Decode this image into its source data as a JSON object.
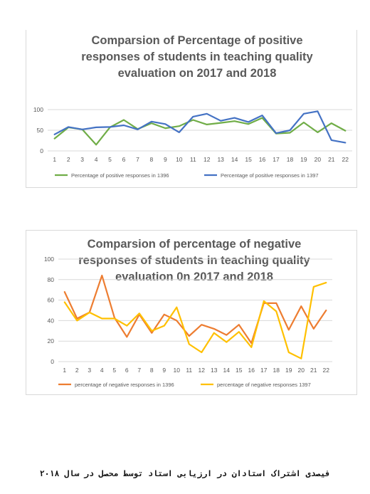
{
  "chart_data": [
    {
      "type": "line",
      "title_lines": [
        "Comparsion of Percentage of positive",
        "responses  of students in teaching quality",
        "evaluation on 2017 and 2018"
      ],
      "x": [
        "1",
        "2",
        "3",
        "4",
        "5",
        "6",
        "7",
        "8",
        "9",
        "10",
        "11",
        "12",
        "13",
        "14",
        "15",
        "16",
        "17",
        "18",
        "19",
        "20",
        "21",
        "22"
      ],
      "yticks": [
        "0",
        "50",
        "100"
      ],
      "ylim": [
        0,
        100
      ],
      "grid": true,
      "legend": "bottom",
      "series": [
        {
          "name": "Percentage of positive responses in 1396",
          "color": "#70ad47",
          "values": [
            30,
            57,
            52,
            15,
            57,
            75,
            53,
            67,
            55,
            60,
            75,
            64,
            68,
            72,
            65,
            80,
            42,
            44,
            69,
            45,
            67,
            49
          ]
        },
        {
          "name": "Percentage of positive responses in 1397",
          "color": "#4472c4",
          "values": [
            40,
            58,
            52,
            57,
            58,
            62,
            52,
            71,
            65,
            45,
            83,
            90,
            73,
            80,
            70,
            86,
            43,
            50,
            90,
            96,
            26,
            20
          ]
        }
      ]
    },
    {
      "type": "line",
      "title_lines": [
        "Comparsion of percentage of negative",
        "responses of students in teaching quality",
        "evaluation 0n 2017 and 2018"
      ],
      "x": [
        "1",
        "2",
        "3",
        "4",
        "5",
        "6",
        "7",
        "8",
        "9",
        "10",
        "11",
        "12",
        "13",
        "14",
        "15",
        "16",
        "17",
        "18",
        "19",
        "20",
        "21",
        "22"
      ],
      "yticks": [
        "0",
        "20",
        "40",
        "60",
        "80",
        "100"
      ],
      "ylim": [
        0,
        100
      ],
      "grid": true,
      "legend": "bottom",
      "series": [
        {
          "name": "percentage of negative responses in 1396",
          "color": "#ed7d31",
          "values": [
            68,
            42,
            48,
            84,
            43,
            24,
            46,
            28,
            46,
            40,
            25,
            36,
            32,
            26,
            36,
            18,
            57,
            57,
            31,
            54,
            32,
            50
          ]
        },
        {
          "name": "percentage of negative responses 1397",
          "color": "#ffc000",
          "values": [
            58,
            40,
            48,
            42,
            42,
            35,
            47,
            30,
            35,
            53,
            17,
            9,
            28,
            19,
            29,
            14,
            59,
            49,
            9,
            3,
            73,
            77
          ]
        }
      ]
    }
  ],
  "footer": {
    "caption": "فیصدی اشتراک استادان در ارزیابی استاد توسط محصل در سال ۲۰۱۸"
  }
}
